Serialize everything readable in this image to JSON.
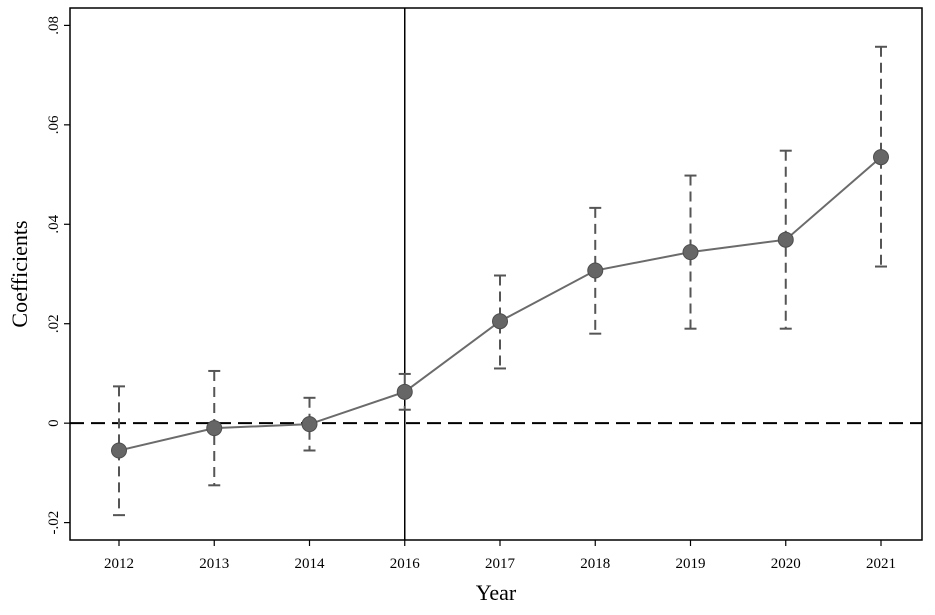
{
  "chart_data": {
    "type": "line",
    "title": "",
    "xlabel": "Year",
    "ylabel": "Coefficients",
    "categories": [
      "2012",
      "2013",
      "2014",
      "2016",
      "2017",
      "2018",
      "2019",
      "2020",
      "2021"
    ],
    "series": [
      {
        "values": [
          -0.0055,
          -0.001,
          -0.0002,
          0.0063,
          0.0205,
          0.0307,
          0.0344,
          0.0369,
          0.0535
        ],
        "ci_lower": [
          -0.0185,
          -0.0125,
          -0.0055,
          0.0027,
          0.011,
          0.018,
          0.019,
          0.019,
          0.0315
        ],
        "ci_upper": [
          0.0074,
          0.0105,
          0.0051,
          0.0099,
          0.0297,
          0.0433,
          0.0498,
          0.0548,
          0.0757
        ]
      }
    ],
    "y_ticks": [
      -0.02,
      0,
      0.02,
      0.04,
      0.06,
      0.08
    ],
    "y_tick_labels": [
      "-.02",
      "0",
      ".02",
      ".04",
      ".06",
      ".08"
    ],
    "ylim": [
      -0.0235,
      0.0835
    ],
    "reference_lines": [
      {
        "axis": "y",
        "value": 0,
        "style": "dashed"
      },
      {
        "axis": "x",
        "value": "2016",
        "style": "solid"
      }
    ],
    "grid": false,
    "legend": "none",
    "colors": {
      "series_line": "#6b6b6b",
      "marker_fill": "#666666",
      "marker_stroke": "#4d4d4d",
      "error_bar": "#555555",
      "reference": "#000000",
      "axes": "#000000"
    }
  }
}
